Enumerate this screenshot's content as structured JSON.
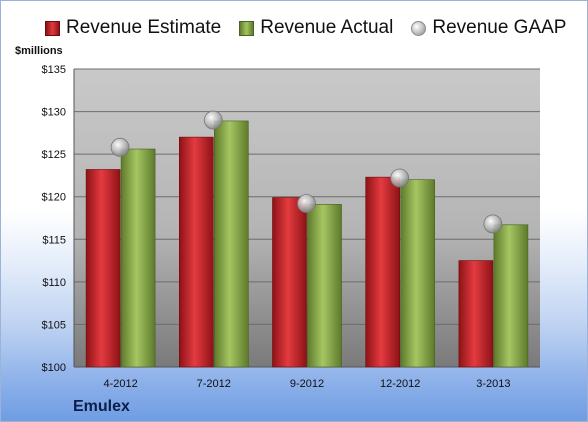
{
  "legend": {
    "estimate": "Revenue Estimate",
    "actual": "Revenue Actual",
    "gaap": "Revenue GAAP"
  },
  "ylabel": "$millions",
  "company": "Emulex",
  "colors": {
    "estimate": "#cc1f24",
    "actual": "#8aab4c",
    "gaap": "#bfbfbf",
    "plot_bg_top": "#c8c8c8",
    "plot_bg_bottom": "#7c7c7c"
  },
  "chart_data": {
    "type": "bar",
    "categories": [
      "4-2012",
      "7-2012",
      "9-2012",
      "12-2012",
      "3-2013"
    ],
    "series": [
      {
        "name": "Revenue Estimate",
        "values": [
          123.2,
          127.0,
          119.9,
          122.3,
          112.5
        ]
      },
      {
        "name": "Revenue Actual",
        "values": [
          125.6,
          128.9,
          119.1,
          122.0,
          116.7
        ]
      },
      {
        "name": "Revenue GAAP",
        "values": [
          125.8,
          129.0,
          119.2,
          122.2,
          116.8
        ]
      }
    ],
    "ylabel": "$millions",
    "ylim": [
      100,
      135
    ],
    "yticks": [
      100,
      105,
      110,
      115,
      120,
      125,
      130,
      135
    ],
    "ytick_labels": [
      "$100",
      "$105",
      "$110",
      "$115",
      "$120",
      "$125",
      "$130",
      "$135"
    ],
    "grid": true,
    "legend_position": "top"
  }
}
